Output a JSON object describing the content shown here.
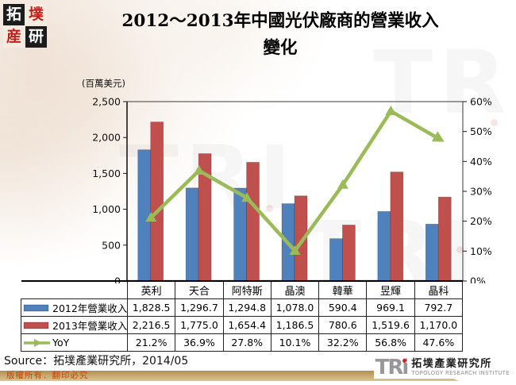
{
  "logo": {
    "chars": [
      "拓",
      "墣",
      "産",
      "研"
    ]
  },
  "header": {
    "title_line1": "2012～2013年中國光伏廠商的營業收入",
    "title_line2": "變化"
  },
  "chart_data": {
    "type": "combo",
    "unit_label": "(百萬美元)",
    "categories": [
      "英利",
      "天合",
      "阿特斯",
      "晶澳",
      "韓華",
      "昱輝",
      "晶科"
    ],
    "series": [
      {
        "name": "2012年營業收入",
        "type": "bar",
        "axis": "left",
        "color": "#4F81BD",
        "values": [
          1828.5,
          1296.7,
          1294.8,
          1078.0,
          590.4,
          969.1,
          792.7
        ],
        "labels": [
          "1,828.5",
          "1,296.7",
          "1,294.8",
          "1,078.0",
          "590.4",
          "969.1",
          "792.7"
        ]
      },
      {
        "name": "2013年營業收入",
        "type": "bar",
        "axis": "left",
        "color": "#C0504D",
        "values": [
          2216.5,
          1775.0,
          1654.4,
          1186.5,
          780.6,
          1519.6,
          1170.0
        ],
        "labels": [
          "2,216.5",
          "1,775.0",
          "1,654.4",
          "1,186.5",
          "780.6",
          "1,519.6",
          "1,170.0"
        ]
      },
      {
        "name": "YoY",
        "type": "line",
        "axis": "right",
        "color": "#9BBB59",
        "values": [
          21.2,
          36.9,
          27.8,
          10.1,
          32.2,
          56.8,
          47.6
        ],
        "labels": [
          "21.2%",
          "36.9%",
          "27.8%",
          "10.1%",
          "32.2%",
          "56.8%",
          "47.6%"
        ]
      }
    ],
    "y_left": {
      "min": 0,
      "max": 2500,
      "step": 500,
      "ticks": [
        "2,500",
        "2,000",
        "1,500",
        "1,000",
        "500",
        "0"
      ]
    },
    "y_right": {
      "min": 0,
      "max": 60,
      "step": 10,
      "ticks": [
        "60%",
        "50%",
        "40%",
        "30%",
        "20%",
        "10%",
        "0%"
      ]
    },
    "grid": false,
    "legend_position": "table-left-column"
  },
  "source": {
    "text": "Source：拓墣產業研究所，2014/05"
  },
  "footer": {
    "copyright": "版權所有．翻印必究",
    "tri": {
      "abbr": "TRi",
      "name_zh": "拓墣產業研究所",
      "name_en": "TOPOLOGY RESEARCH INSTITUTE"
    }
  },
  "watermark": {
    "text": "TRI"
  }
}
